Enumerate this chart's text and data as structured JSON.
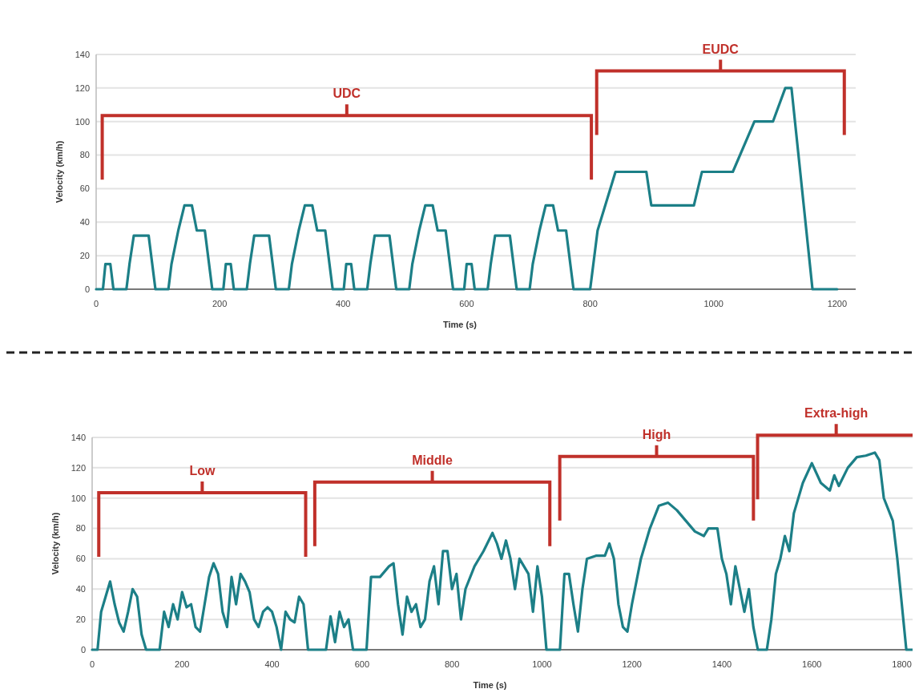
{
  "chart_data": [
    {
      "type": "line",
      "xlabel": "Time (s)",
      "ylabel": "Velocity (km/h)",
      "xlim": [
        0,
        1230
      ],
      "ylim": [
        0,
        140
      ],
      "xticks": [
        0,
        200,
        400,
        600,
        800,
        1000,
        1200
      ],
      "yticks": [
        0,
        20,
        40,
        60,
        80,
        100,
        120,
        140
      ],
      "grid": "y",
      "marker": "none",
      "line_style": "solid",
      "series": [
        {
          "color": "#1c7f87",
          "x": [
            0,
            11,
            15,
            23,
            28,
            49,
            54,
            61,
            85,
            96,
            117,
            122,
            133,
            143,
            155,
            163,
            176,
            188,
            195,
            206,
            210,
            218,
            223,
            244,
            249,
            256,
            280,
            291,
            312,
            317,
            328,
            338,
            350,
            358,
            371,
            383,
            390,
            401,
            405,
            413,
            418,
            439,
            444,
            451,
            475,
            486,
            507,
            512,
            523,
            533,
            545,
            553,
            566,
            578,
            585,
            596,
            600,
            608,
            613,
            634,
            639,
            646,
            670,
            681,
            702,
            707,
            718,
            728,
            740,
            748,
            761,
            773,
            780,
            800,
            812,
            841,
            891,
            899,
            968,
            981,
            1031,
            1066,
            1096,
            1116,
            1126,
            1160,
            1180,
            1200
          ],
          "values": [
            0,
            0,
            15,
            15,
            0,
            0,
            15,
            32,
            32,
            0,
            0,
            15,
            35,
            50,
            50,
            35,
            35,
            0,
            0,
            0,
            15,
            15,
            0,
            0,
            15,
            32,
            32,
            0,
            0,
            15,
            35,
            50,
            50,
            35,
            35,
            0,
            0,
            0,
            15,
            15,
            0,
            0,
            15,
            32,
            32,
            0,
            0,
            15,
            35,
            50,
            50,
            35,
            35,
            0,
            0,
            0,
            15,
            15,
            0,
            0,
            15,
            32,
            32,
            0,
            0,
            15,
            35,
            50,
            50,
            35,
            35,
            0,
            0,
            0,
            35,
            70,
            70,
            50,
            50,
            70,
            70,
            100,
            100,
            120,
            120,
            0,
            0,
            0
          ]
        }
      ],
      "annotations": [
        "UDC",
        "EUDC"
      ]
    },
    {
      "type": "line",
      "xlabel": "Time (s)",
      "ylabel": "Velocity (km/h)",
      "xlim": [
        0,
        1840
      ],
      "ylim": [
        0,
        140
      ],
      "xticks": [
        0,
        200,
        400,
        600,
        800,
        1000,
        1200,
        1400,
        1600,
        1800
      ],
      "yticks": [
        0,
        20,
        40,
        60,
        80,
        100,
        120,
        140
      ],
      "grid": "y",
      "marker": "none",
      "line_style": "solid",
      "series": [
        {
          "color": "#1c7f87",
          "x": [
            0,
            12,
            20,
            30,
            40,
            50,
            60,
            70,
            80,
            90,
            100,
            110,
            120,
            150,
            160,
            170,
            180,
            190,
            200,
            210,
            220,
            230,
            240,
            250,
            260,
            270,
            280,
            290,
            300,
            310,
            320,
            330,
            340,
            350,
            360,
            370,
            380,
            390,
            400,
            410,
            420,
            430,
            440,
            450,
            460,
            470,
            480,
            500,
            520,
            530,
            540,
            550,
            560,
            570,
            580,
            610,
            620,
            640,
            660,
            670,
            680,
            690,
            700,
            710,
            720,
            730,
            740,
            750,
            760,
            770,
            780,
            790,
            800,
            810,
            820,
            830,
            850,
            870,
            890,
            900,
            910,
            920,
            930,
            940,
            950,
            960,
            970,
            980,
            990,
            1000,
            1010,
            1030,
            1040,
            1050,
            1060,
            1070,
            1080,
            1090,
            1100,
            1120,
            1140,
            1150,
            1160,
            1170,
            1180,
            1190,
            1200,
            1220,
            1240,
            1260,
            1280,
            1300,
            1320,
            1340,
            1360,
            1370,
            1390,
            1400,
            1410,
            1420,
            1430,
            1440,
            1450,
            1460,
            1470,
            1480,
            1500,
            1510,
            1520,
            1530,
            1540,
            1550,
            1560,
            1580,
            1600,
            1620,
            1640,
            1650,
            1660,
            1680,
            1700,
            1720,
            1740,
            1750,
            1760,
            1780,
            1790,
            1800,
            1810,
            1830
          ],
          "values": [
            0,
            0,
            25,
            35,
            45,
            30,
            18,
            12,
            25,
            40,
            35,
            10,
            0,
            0,
            25,
            15,
            30,
            20,
            38,
            28,
            30,
            15,
            12,
            30,
            48,
            57,
            50,
            25,
            15,
            48,
            30,
            50,
            45,
            38,
            20,
            15,
            25,
            28,
            25,
            15,
            0,
            25,
            20,
            18,
            35,
            30,
            0,
            0,
            0,
            22,
            5,
            25,
            15,
            20,
            0,
            0,
            48,
            48,
            55,
            57,
            30,
            10,
            35,
            25,
            30,
            15,
            20,
            45,
            55,
            30,
            65,
            65,
            40,
            50,
            20,
            40,
            55,
            65,
            77,
            70,
            60,
            72,
            60,
            40,
            60,
            55,
            50,
            25,
            55,
            35,
            0,
            0,
            0,
            50,
            50,
            30,
            12,
            40,
            60,
            62,
            62,
            70,
            60,
            30,
            15,
            12,
            30,
            60,
            80,
            95,
            97,
            92,
            85,
            78,
            75,
            80,
            80,
            60,
            50,
            30,
            55,
            40,
            25,
            40,
            15,
            0,
            0,
            20,
            50,
            60,
            75,
            65,
            90,
            110,
            123,
            110,
            105,
            115,
            108,
            120,
            127,
            128,
            130,
            125,
            100,
            85,
            60,
            30,
            0,
            0
          ]
        }
      ],
      "annotations": [
        "Low",
        "Middle",
        "High",
        "Extra-high"
      ]
    }
  ]
}
